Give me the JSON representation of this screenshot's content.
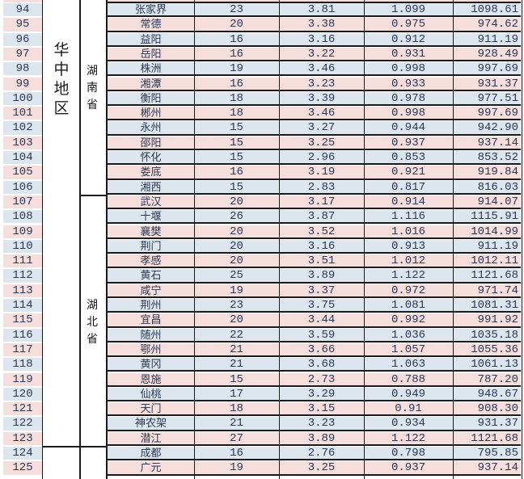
{
  "table": {
    "region_label": "华中地区",
    "provinces": [
      {
        "name": "湖南省"
      },
      {
        "name": "湖北省"
      }
    ],
    "rows": [
      {
        "no": "94",
        "city": "张家界",
        "n": "23",
        "a": "3.81",
        "b": "1.099",
        "c": "1098.61"
      },
      {
        "no": "95",
        "city": "常德",
        "n": "20",
        "a": "3.38",
        "b": "0.975",
        "c": "974.62"
      },
      {
        "no": "96",
        "city": "益阳",
        "n": "16",
        "a": "3.16",
        "b": "0.912",
        "c": "911.19"
      },
      {
        "no": "97",
        "city": "岳阳",
        "n": "16",
        "a": "3.22",
        "b": "0.931",
        "c": "928.49"
      },
      {
        "no": "98",
        "city": "株洲",
        "n": "19",
        "a": "3.46",
        "b": "0.998",
        "c": "997.69"
      },
      {
        "no": "99",
        "city": "湘潭",
        "n": "16",
        "a": "3.23",
        "b": "0.933",
        "c": "931.37"
      },
      {
        "no": "100",
        "city": "衡阳",
        "n": "18",
        "a": "3.39",
        "b": "0.978",
        "c": "977.51"
      },
      {
        "no": "101",
        "city": "郴州",
        "n": "18",
        "a": "3.46",
        "b": "0.998",
        "c": "997.69"
      },
      {
        "no": "102",
        "city": "永州",
        "n": "15",
        "a": "3.27",
        "b": "0.944",
        "c": "942.90"
      },
      {
        "no": "103",
        "city": "邵阳",
        "n": "15",
        "a": "3.25",
        "b": "0.937",
        "c": "937.14"
      },
      {
        "no": "104",
        "city": "怀化",
        "n": "15",
        "a": "2.96",
        "b": "0.853",
        "c": "853.52"
      },
      {
        "no": "105",
        "city": "娄底",
        "n": "16",
        "a": "3.19",
        "b": "0.921",
        "c": "919.84"
      },
      {
        "no": "106",
        "city": "湘西",
        "n": "15",
        "a": "2.83",
        "b": "0.817",
        "c": "816.03"
      },
      {
        "no": "107",
        "city": "武汉",
        "n": "20",
        "a": "3.17",
        "b": "0.914",
        "c": "914.07"
      },
      {
        "no": "108",
        "city": "十堰",
        "n": "26",
        "a": "3.87",
        "b": "1.116",
        "c": "1115.91"
      },
      {
        "no": "109",
        "city": "襄樊",
        "n": "20",
        "a": "3.52",
        "b": "1.016",
        "c": "1014.99"
      },
      {
        "no": "110",
        "city": "荆门",
        "n": "20",
        "a": "3.16",
        "b": "0.913",
        "c": "911.19"
      },
      {
        "no": "111",
        "city": "孝感",
        "n": "20",
        "a": "3.51",
        "b": "1.012",
        "c": "1012.11"
      },
      {
        "no": "112",
        "city": "黄石",
        "n": "25",
        "a": "3.89",
        "b": "1.122",
        "c": "1121.68"
      },
      {
        "no": "113",
        "city": "咸宁",
        "n": "19",
        "a": "3.37",
        "b": "0.972",
        "c": "971.74"
      },
      {
        "no": "114",
        "city": "荆州",
        "n": "23",
        "a": "3.75",
        "b": "1.081",
        "c": "1081.31"
      },
      {
        "no": "115",
        "city": "宜昌",
        "n": "20",
        "a": "3.44",
        "b": "0.992",
        "c": "991.92"
      },
      {
        "no": "116",
        "city": "随州",
        "n": "22",
        "a": "3.59",
        "b": "1.036",
        "c": "1035.18"
      },
      {
        "no": "117",
        "city": "鄂州",
        "n": "21",
        "a": "3.66",
        "b": "1.057",
        "c": "1055.36"
      },
      {
        "no": "118",
        "city": "黄冈",
        "n": "21",
        "a": "3.68",
        "b": "1.063",
        "c": "1061.13"
      },
      {
        "no": "119",
        "city": "恩施",
        "n": "15",
        "a": "2.73",
        "b": "0.788",
        "c": "787.20"
      },
      {
        "no": "120",
        "city": "仙桃",
        "n": "17",
        "a": "3.29",
        "b": "0.949",
        "c": "948.67"
      },
      {
        "no": "121",
        "city": "天门",
        "n": "18",
        "a": "3.15",
        "b": "0.91",
        "c": "908.30"
      },
      {
        "no": "122",
        "city": "神农架",
        "n": "21",
        "a": "3.23",
        "b": "0.934",
        "c": "931.37"
      },
      {
        "no": "123",
        "city": "潜江",
        "n": "27",
        "a": "3.89",
        "b": "1.122",
        "c": "1121.68"
      },
      {
        "no": "124",
        "city": "成都",
        "n": "16",
        "a": "2.76",
        "b": "0.798",
        "c": "795.85"
      },
      {
        "no": "125",
        "city": "广元",
        "n": "19",
        "a": "3.25",
        "b": "0.937",
        "c": "937.14"
      }
    ]
  },
  "colors": {
    "even_row": "#dde5ef",
    "odd_row": "#f5dedc",
    "border": "#1a1a1a"
  }
}
